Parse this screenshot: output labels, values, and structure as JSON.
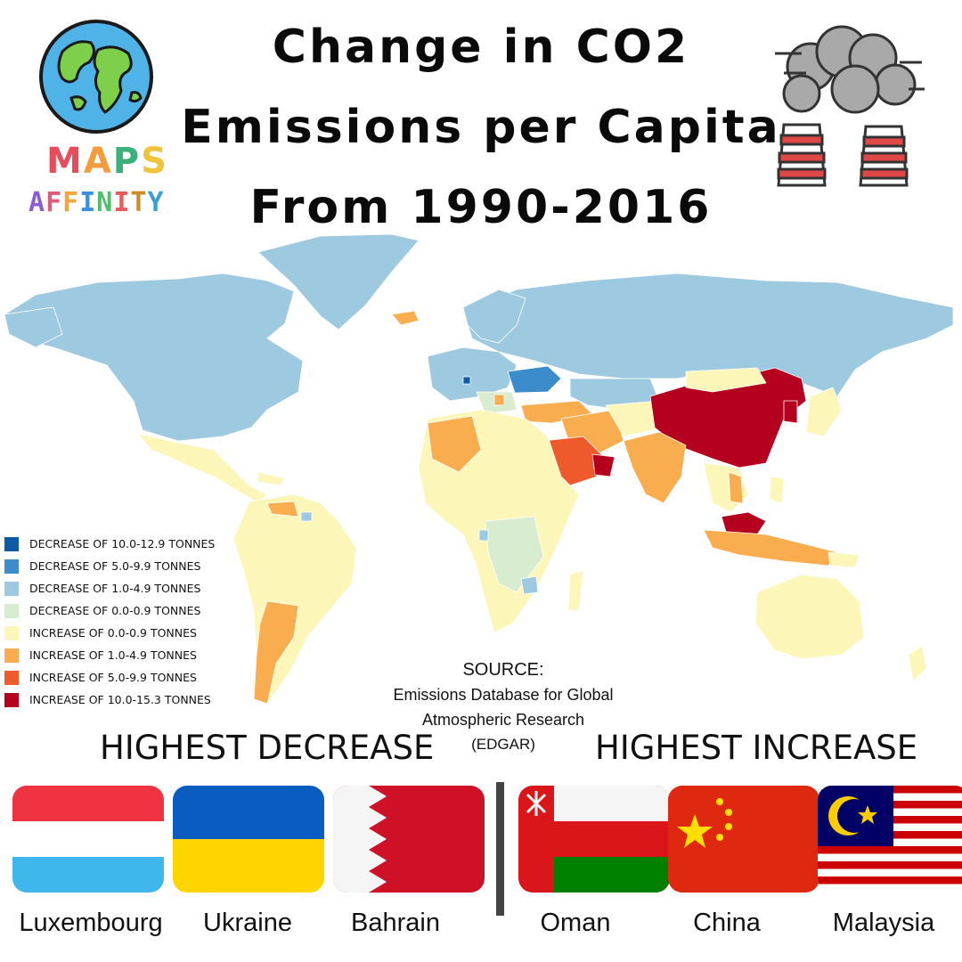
{
  "title": [
    "Change in CO2",
    "Emissions per Capita",
    "From 1990-2016"
  ],
  "brand": {
    "line1": [
      "M",
      "A",
      "P",
      "S"
    ],
    "line1_colors": [
      "#e74c5a",
      "#f39c3c",
      "#3ab07a",
      "#f0c43a"
    ],
    "line2": [
      "A",
      "F",
      "F",
      "I",
      "N",
      "I",
      "T",
      "Y"
    ],
    "line2_colors": [
      "#8e5bd6",
      "#e05a7a",
      "#f0a63a",
      "#3a8fe0",
      "#4fbf6a",
      "#e55a5a",
      "#d08a2a",
      "#3aa0d0"
    ]
  },
  "legend": [
    {
      "label": "DECREASE OF 10.0-12.9 TONNES",
      "color": "#0e5aa7"
    },
    {
      "label": "DECREASE OF 5.0-9.9 TONNES",
      "color": "#3a8ccb"
    },
    {
      "label": "DECREASE OF 1.0-4.9 TONNES",
      "color": "#9ecae1"
    },
    {
      "label": "DECREASE OF 0.0-0.9 TONNES",
      "color": "#d8eccf"
    },
    {
      "label": "INCREASE OF 0.0-0.9 TONNES",
      "color": "#fcf6b8"
    },
    {
      "label": "INCREASE OF 1.0-4.9 TONNES",
      "color": "#f9ad4e"
    },
    {
      "label": "INCREASE OF 5.0-9.9 TONNES",
      "color": "#ee5a2b"
    },
    {
      "label": "INCREASE OF 10.0-15.3 TONNES",
      "color": "#b5001f"
    }
  ],
  "source": {
    "heading": "SOURCE:",
    "line1": "Emissions Database for Global",
    "line2": "Atmospheric Research",
    "abbr": "(EDGAR)"
  },
  "highest_decrease": {
    "heading": "HIGHEST DECREASE",
    "countries": [
      "Luxembourg",
      "Ukraine",
      "Bahrain"
    ]
  },
  "highest_increase": {
    "heading": "HIGHEST INCREASE",
    "countries": [
      "Oman",
      "China",
      "Malaysia"
    ]
  }
}
